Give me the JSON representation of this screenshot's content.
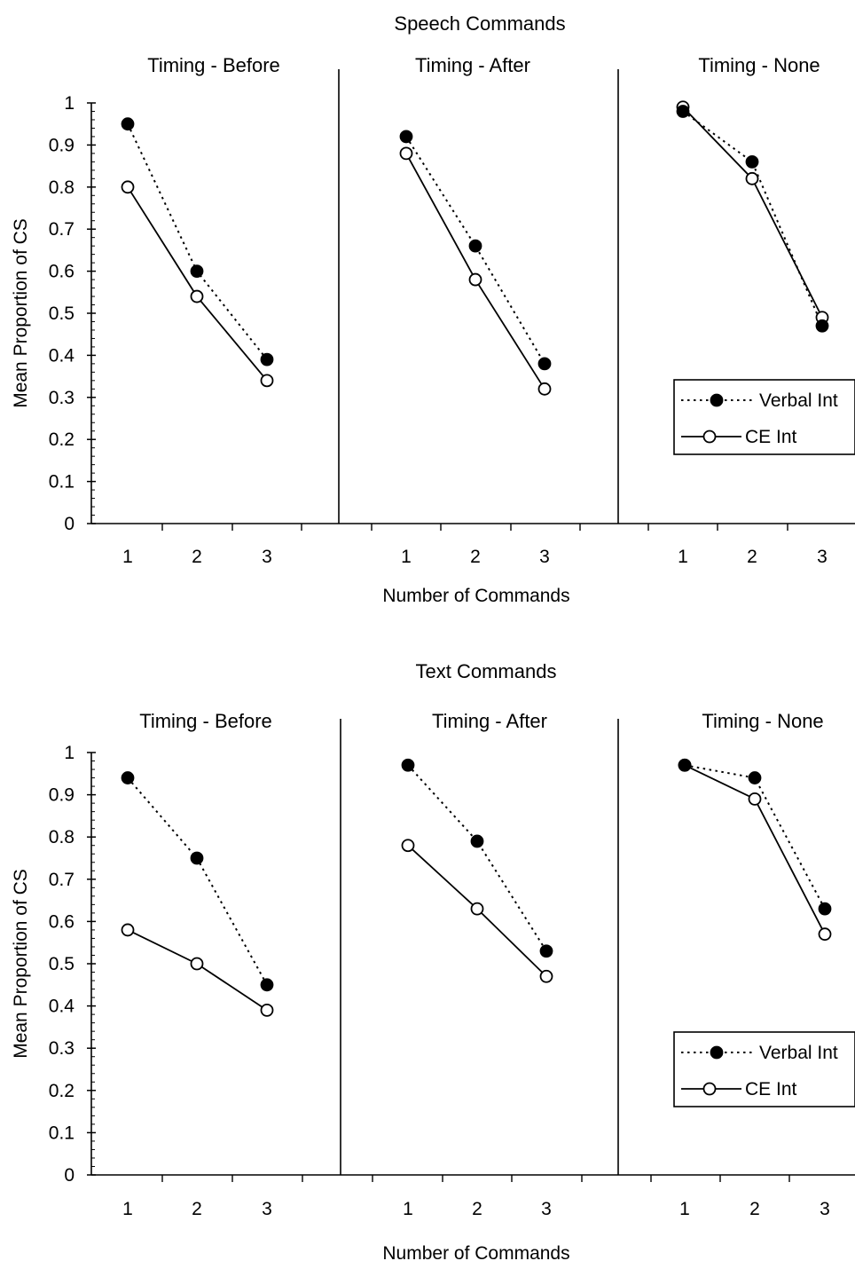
{
  "chart_data": [
    {
      "type": "line",
      "title": "Speech Commands",
      "xlabel": "Number of Commands",
      "ylabel": "Mean Proportion of CS",
      "ylim": [
        0,
        1
      ],
      "yticks": [
        "0",
        "0.1",
        "0.2",
        "0.3",
        "0.4",
        "0.5",
        "0.6",
        "0.7",
        "0.8",
        "0.9",
        "1"
      ],
      "categories": [
        "1",
        "2",
        "3"
      ],
      "legend": {
        "position": "bottom-right of last panel",
        "entries": [
          "Verbal Int",
          "CE Int"
        ]
      },
      "panels": [
        {
          "title": "Timing - Before",
          "series": [
            {
              "name": "Verbal Int",
              "values": [
                0.95,
                0.6,
                0.39
              ]
            },
            {
              "name": "CE Int",
              "values": [
                0.8,
                0.54,
                0.34
              ]
            }
          ]
        },
        {
          "title": "Timing - After",
          "series": [
            {
              "name": "Verbal Int",
              "values": [
                0.92,
                0.66,
                0.38
              ]
            },
            {
              "name": "CE Int",
              "values": [
                0.88,
                0.58,
                0.32
              ]
            }
          ]
        },
        {
          "title": "Timing - None",
          "series": [
            {
              "name": "Verbal Int",
              "values": [
                0.98,
                0.86,
                0.47
              ]
            },
            {
              "name": "CE Int",
              "values": [
                0.99,
                0.82,
                0.49
              ]
            }
          ]
        }
      ]
    },
    {
      "type": "line",
      "title": "Text Commands",
      "xlabel": "Number of Commands",
      "ylabel": "Mean Proportion of CS",
      "ylim": [
        0,
        1
      ],
      "yticks": [
        "0",
        "0.1",
        "0.2",
        "0.3",
        "0.4",
        "0.5",
        "0.6",
        "0.7",
        "0.8",
        "0.9",
        "1"
      ],
      "categories": [
        "1",
        "2",
        "3"
      ],
      "legend": {
        "position": "bottom-right of last panel",
        "entries": [
          "Verbal Int",
          "CE Int"
        ]
      },
      "panels": [
        {
          "title": "Timing - Before",
          "series": [
            {
              "name": "Verbal Int",
              "values": [
                0.94,
                0.75,
                0.45
              ]
            },
            {
              "name": "CE Int",
              "values": [
                0.58,
                0.5,
                0.39
              ]
            }
          ]
        },
        {
          "title": "Timing - After",
          "series": [
            {
              "name": "Verbal Int",
              "values": [
                0.97,
                0.79,
                0.53
              ]
            },
            {
              "name": "CE Int",
              "values": [
                0.78,
                0.63,
                0.47
              ]
            }
          ]
        },
        {
          "title": "Timing - None",
          "series": [
            {
              "name": "Verbal Int",
              "values": [
                0.97,
                0.94,
                0.63
              ]
            },
            {
              "name": "CE Int",
              "values": [
                0.97,
                0.89,
                0.57
              ]
            }
          ]
        }
      ]
    }
  ]
}
